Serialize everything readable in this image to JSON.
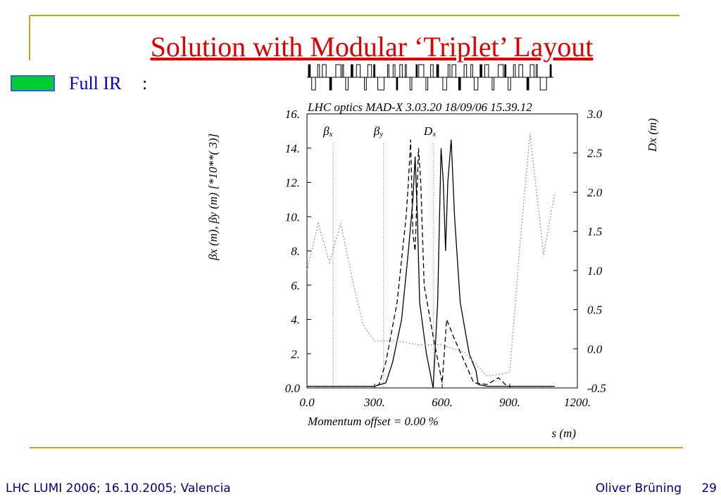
{
  "slide": {
    "title": "Solution with Modular ‘Triplet’ Layout",
    "bullet": "Full IR",
    "bullet_colon": ":",
    "footer_left": "LHC LUMI 2006; 16.10.2005; Valencia",
    "footer_author": "Oliver Brüning",
    "page_number": "29"
  },
  "chart_data": {
    "type": "line",
    "title": "LHC optics MAD-X 3.03.20  18/09/06 15.39.12",
    "subtitle": "Momentum offset =     0.00 %",
    "x_label": "s (m)",
    "y_label": "βx (m), βy (m)    [*10**( 3)]",
    "y2_label": "Dx (m)",
    "xlim": [
      0,
      1200
    ],
    "xticks": [
      {
        "value": 0,
        "label": "0.0"
      },
      {
        "value": 300,
        "label": "300."
      },
      {
        "value": 600,
        "label": "600."
      },
      {
        "value": 900,
        "label": "900."
      },
      {
        "value": 1200,
        "label": "1200."
      }
    ],
    "ylim": [
      0,
      16
    ],
    "yticks": [
      {
        "value": 0,
        "label": "0.0"
      },
      {
        "value": 2,
        "label": "2."
      },
      {
        "value": 4,
        "label": "4."
      },
      {
        "value": 6,
        "label": "6."
      },
      {
        "value": 8,
        "label": "8."
      },
      {
        "value": 10,
        "label": "10."
      },
      {
        "value": 12,
        "label": "12."
      },
      {
        "value": 14,
        "label": "14."
      },
      {
        "value": 16,
        "label": "16."
      }
    ],
    "y2lim": [
      -0.5,
      3.0
    ],
    "y2ticks": [
      -0.5,
      {
        "value": 0,
        "label": "0.0"
      },
      0.5,
      {
        "value": 1,
        "label": "1.0"
      },
      1.5,
      {
        "value": 2,
        "label": "2.0"
      },
      2.5,
      {
        "value": 3,
        "label": "3.0"
      }
    ],
    "annotations": [
      {
        "symbol": "β",
        "sub": "x",
        "x": 116
      },
      {
        "symbol": "β",
        "sub": "y",
        "x": 340
      },
      {
        "symbol": "D",
        "sub": "x",
        "x": 562
      }
    ],
    "series": [
      {
        "name": "βx",
        "color": "#000000",
        "dash": "solid",
        "x": [
          0,
          100,
          200,
          300,
          350,
          380,
          420,
          450,
          470,
          480,
          490,
          500,
          530,
          560,
          580,
          595,
          605,
          615,
          625,
          640,
          655,
          680,
          720,
          750,
          760,
          800,
          900,
          1000,
          1100
        ],
        "values": [
          0.1,
          0.1,
          0.1,
          0.1,
          0.3,
          1.5,
          4,
          8,
          11,
          13.5,
          10,
          5,
          2,
          0,
          5,
          14,
          12,
          8,
          12,
          14.5,
          10,
          5,
          2,
          1,
          0.2,
          0.1,
          0.1,
          0.1,
          0.1
        ]
      },
      {
        "name": "βy",
        "color": "#000000",
        "dash": "dashed",
        "x": [
          0,
          100,
          200,
          300,
          320,
          350,
          400,
          440,
          450,
          460,
          470,
          480,
          495,
          505,
          520,
          560,
          600,
          620,
          650,
          700,
          740,
          800,
          850,
          880,
          900,
          1000,
          1100
        ],
        "values": [
          0.1,
          0.1,
          0.1,
          0.1,
          0.2,
          1.5,
          5,
          10,
          12,
          14.5,
          9,
          8,
          14,
          12,
          6,
          3,
          0.3,
          4,
          3,
          1.5,
          0.3,
          0.2,
          0.6,
          0.2,
          0.1,
          0.1,
          0.1
        ]
      },
      {
        "name": "Dx",
        "color": "#808080",
        "dash": "dotted",
        "axis": "y2",
        "x": [
          0,
          50,
          100,
          150,
          200,
          250,
          300,
          400,
          500,
          600,
          700,
          800,
          900,
          950,
          990,
          1050,
          1100
        ],
        "values": [
          1.0,
          1.6,
          1.1,
          1.6,
          0.9,
          0.3,
          0.1,
          0.1,
          0.05,
          0.05,
          -0.05,
          -0.35,
          -0.3,
          1.5,
          2.75,
          1.2,
          2.0
        ]
      }
    ]
  }
}
